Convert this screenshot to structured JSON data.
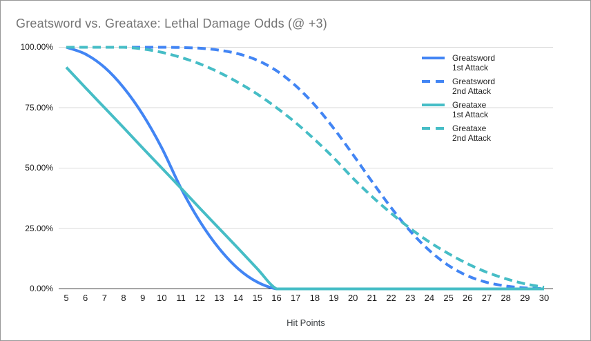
{
  "window": {
    "background": "#ffffff",
    "border_color": "#979797"
  },
  "chart_data": {
    "type": "line",
    "title": "Greatsword vs. Greataxe: Lethal Damage Odds (@ +3)",
    "xlabel": "Hit Points",
    "ylabel": "",
    "x": [
      5,
      6,
      7,
      8,
      9,
      10,
      11,
      12,
      13,
      14,
      15,
      16,
      17,
      18,
      19,
      20,
      21,
      22,
      23,
      24,
      25,
      26,
      27,
      28,
      29,
      30
    ],
    "y_ticks": [
      {
        "value": 100,
        "label": "100.00%"
      },
      {
        "value": 75,
        "label": "75.00%"
      },
      {
        "value": 50,
        "label": "50.00%"
      },
      {
        "value": 25,
        "label": "25.00%"
      },
      {
        "value": 0,
        "label": "0.00%"
      }
    ],
    "ylim": [
      0,
      100
    ],
    "grid": "horizontal",
    "smooth": true,
    "legend_position": "right",
    "colors": {
      "title_text": "#757575",
      "gridline": "#dadada",
      "axis_line": "#333333",
      "tick_text": "#1a1a1a",
      "axis_title_text": "#3c4043",
      "legend_text": "#212121"
    },
    "series": [
      {
        "name": "Greatsword 1st Attack",
        "legend_lines": [
          "Greatsword",
          "1st Attack"
        ],
        "color": "#4285F4",
        "dash": "",
        "values": [
          100,
          97.2,
          91.7,
          83.3,
          72.2,
          58.3,
          41.7,
          27.8,
          16.7,
          8.3,
          2.8,
          0,
          0,
          0,
          0,
          0,
          0,
          0,
          0,
          0,
          0,
          0,
          0,
          0,
          0,
          0
        ]
      },
      {
        "name": "Greatsword 2nd Attack",
        "legend_lines": [
          "Greatsword",
          "2nd Attack"
        ],
        "color": "#4285F4",
        "dash": "12 7",
        "values": [
          100,
          100,
          100,
          100,
          100,
          100,
          99.9,
          99.6,
          98.8,
          97.3,
          94.6,
          90.3,
          84.1,
          76.1,
          66.4,
          55.6,
          44.4,
          33.6,
          23.9,
          15.9,
          9.7,
          5.4,
          2.7,
          1.2,
          0.4,
          0.1
        ]
      },
      {
        "name": "Greataxe 1st Attack",
        "legend_lines": [
          "Greataxe",
          "1st Attack"
        ],
        "color": "#46BDC6",
        "dash": "",
        "values": [
          91.7,
          83.3,
          75,
          66.7,
          58.3,
          50,
          41.7,
          33.3,
          25,
          16.7,
          8.3,
          0,
          0,
          0,
          0,
          0,
          0,
          0,
          0,
          0,
          0,
          0,
          0,
          0,
          0,
          0
        ]
      },
      {
        "name": "Greataxe 2nd Attack",
        "legend_lines": [
          "Greataxe",
          "2nd Attack"
        ],
        "color": "#46BDC6",
        "dash": "12 7",
        "values": [
          100,
          100,
          100,
          100,
          99.3,
          97.9,
          95.8,
          93.1,
          89.6,
          85.4,
          80.6,
          75,
          68.8,
          61.8,
          54.2,
          45.8,
          38.2,
          31.3,
          25,
          19.4,
          14.6,
          10.4,
          6.9,
          4.2,
          2.1,
          0.7
        ]
      }
    ]
  }
}
